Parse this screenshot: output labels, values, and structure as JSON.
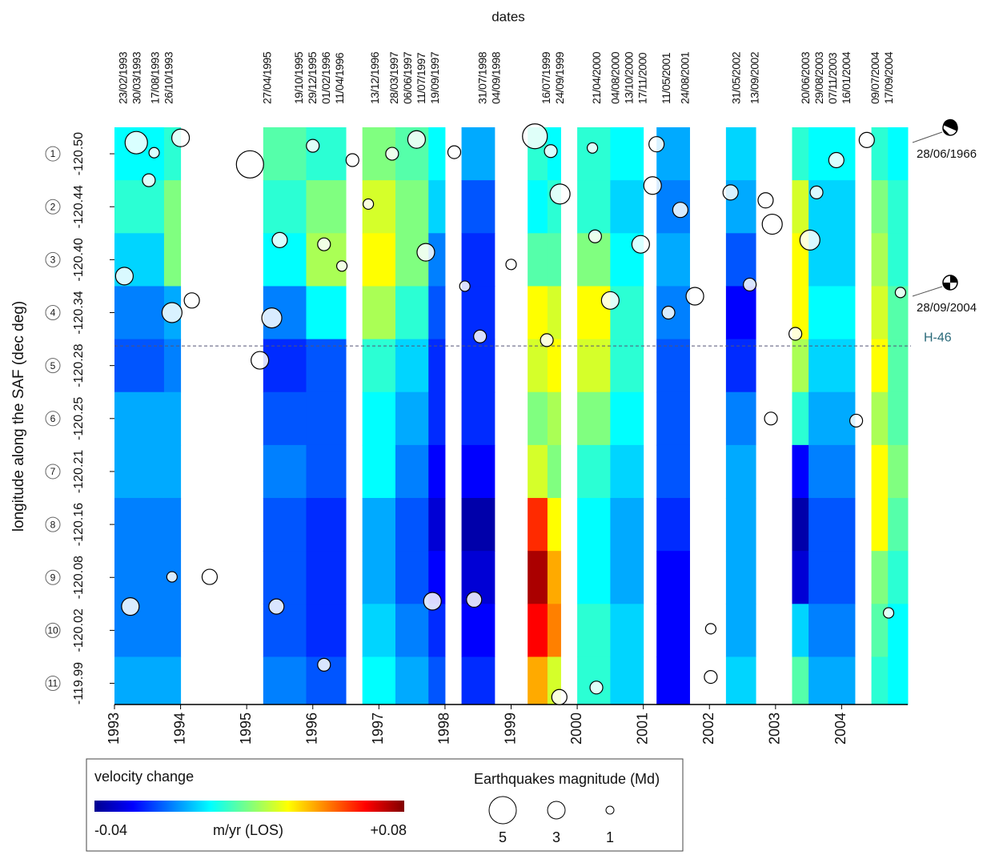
{
  "chart_data": {
    "type": "heatmap-bubble",
    "top_label": "dates",
    "y_label": "longitude along the SAF (dec deg)",
    "dates": [
      "23/02/1993",
      "30/03/1993",
      "17/08/1993",
      "26/10/1993",
      "27/04/1995",
      "19/10/1995",
      "29/12/1995",
      "01/02/1996",
      "11/04/1996",
      "13/12/1996",
      "28/03/1997",
      "06/06/1997",
      "11/07/1997",
      "19/09/1997",
      "31/07/1998",
      "04/09/1998",
      "16/07/1999",
      "24/09/1999",
      "21/04/2000",
      "04/08/2000",
      "13/10/2000",
      "17/11/2000",
      "11/05/2001",
      "24/08/2001",
      "31/05/2002",
      "13/09/2002",
      "20/06/2003",
      "29/08/2003",
      "07/11/2003",
      "16/01/2004",
      "09/07/2004",
      "17/09/2004"
    ],
    "xlim": [
      1993,
      2005
    ],
    "xticks": [
      1993,
      1994,
      1995,
      1996,
      1997,
      1998,
      1999,
      2000,
      2001,
      2002,
      2003,
      2004
    ],
    "ylim": [
      0.5,
      11.4
    ],
    "yticks": [
      {
        "value": 1,
        "label": "-120.50"
      },
      {
        "value": 2,
        "label": "-120.44"
      },
      {
        "value": 3,
        "label": "-120.40"
      },
      {
        "value": 4,
        "label": "-120.34"
      },
      {
        "value": 5,
        "label": "-120.28"
      },
      {
        "value": 6,
        "label": "-120.25"
      },
      {
        "value": 7,
        "label": "-120.21"
      },
      {
        "value": 8,
        "label": "-120.16"
      },
      {
        "value": 9,
        "label": "-120.08"
      },
      {
        "value": 10,
        "label": "-120.02"
      },
      {
        "value": 11,
        "label": "-119.99"
      }
    ],
    "segments": [
      "1",
      "2",
      "3",
      "4",
      "5",
      "6",
      "7",
      "8",
      "9",
      "10",
      "11"
    ],
    "strips": [
      {
        "start": 1993.0,
        "end": 1993.75,
        "values": [
          0.005,
          0.01,
          0.0,
          -0.01,
          -0.015,
          -0.005,
          -0.005,
          -0.01,
          -0.01,
          -0.01,
          -0.005
        ]
      },
      {
        "start": 1993.75,
        "end": 1994.0,
        "values": [
          0.01,
          0.02,
          0.02,
          -0.005,
          -0.01,
          -0.005,
          -0.005,
          -0.01,
          -0.01,
          -0.01,
          -0.005
        ]
      },
      {
        "start": 1995.25,
        "end": 1995.9,
        "values": [
          0.015,
          0.01,
          0.005,
          -0.01,
          -0.02,
          -0.015,
          -0.01,
          -0.015,
          -0.015,
          -0.015,
          -0.01
        ]
      },
      {
        "start": 1995.9,
        "end": 1996.5,
        "values": [
          0.01,
          0.02,
          0.025,
          0.005,
          -0.015,
          -0.015,
          -0.015,
          -0.02,
          -0.02,
          -0.02,
          -0.015
        ]
      },
      {
        "start": 1996.75,
        "end": 1997.25,
        "values": [
          0.02,
          0.03,
          0.035,
          0.025,
          0.01,
          0.005,
          0.005,
          -0.005,
          -0.005,
          0.0,
          0.005
        ]
      },
      {
        "start": 1997.25,
        "end": 1997.75,
        "values": [
          0.015,
          0.02,
          0.02,
          0.01,
          0.0,
          -0.005,
          -0.01,
          -0.015,
          -0.015,
          -0.01,
          -0.005
        ]
      },
      {
        "start": 1997.75,
        "end": 1998.0,
        "values": [
          0.005,
          0.0,
          -0.01,
          -0.015,
          -0.02,
          -0.02,
          -0.025,
          -0.03,
          -0.025,
          -0.02,
          -0.015
        ]
      },
      {
        "start": 1998.25,
        "end": 1998.75,
        "values": [
          -0.005,
          -0.015,
          -0.02,
          -0.02,
          -0.02,
          -0.02,
          -0.025,
          -0.035,
          -0.03,
          -0.025,
          -0.02
        ]
      },
      {
        "start": 1999.25,
        "end": 1999.55,
        "values": [
          0.01,
          0.005,
          0.015,
          0.035,
          0.03,
          0.02,
          0.03,
          0.06,
          0.075,
          0.065,
          0.045
        ]
      },
      {
        "start": 1999.55,
        "end": 1999.75,
        "values": [
          0.005,
          0.01,
          0.015,
          0.03,
          0.035,
          0.025,
          0.02,
          0.035,
          0.045,
          0.05,
          0.03
        ]
      },
      {
        "start": 2000.0,
        "end": 2000.5,
        "values": [
          0.01,
          0.01,
          0.02,
          0.035,
          0.03,
          0.02,
          0.01,
          0.005,
          0.005,
          0.01,
          0.01
        ]
      },
      {
        "start": 2000.5,
        "end": 2001.0,
        "values": [
          0.005,
          0.0,
          0.005,
          0.01,
          0.01,
          0.005,
          0.0,
          -0.005,
          -0.005,
          0.0,
          0.0
        ]
      },
      {
        "start": 2001.2,
        "end": 2001.7,
        "values": [
          -0.005,
          -0.01,
          -0.005,
          -0.01,
          -0.015,
          -0.015,
          -0.015,
          -0.02,
          -0.025,
          -0.025,
          -0.025
        ]
      },
      {
        "start": 2002.25,
        "end": 2002.7,
        "values": [
          0.0,
          -0.005,
          -0.015,
          -0.025,
          -0.02,
          -0.01,
          -0.005,
          -0.005,
          -0.005,
          -0.005,
          0.0
        ]
      },
      {
        "start": 2003.25,
        "end": 2003.5,
        "values": [
          0.01,
          0.03,
          0.035,
          0.035,
          0.025,
          0.01,
          -0.025,
          -0.035,
          -0.03,
          0.0,
          0.015
        ]
      },
      {
        "start": 2003.5,
        "end": 2004.2,
        "values": [
          0.005,
          0.0,
          0.0,
          0.005,
          0.0,
          -0.005,
          -0.01,
          -0.015,
          -0.015,
          -0.01,
          -0.005
        ]
      },
      {
        "start": 2004.45,
        "end": 2004.7,
        "values": [
          0.01,
          0.02,
          0.025,
          0.03,
          0.035,
          0.025,
          0.035,
          0.035,
          0.02,
          0.015,
          0.01
        ]
      },
      {
        "start": 2004.7,
        "end": 2005.0,
        "values": [
          0.005,
          0.01,
          0.01,
          0.015,
          0.015,
          0.015,
          0.02,
          0.015,
          0.01,
          0.005,
          0.005
        ]
      }
    ],
    "earthquakes": {
      "x": [
        1993.33,
        1993.15,
        1993.24,
        1993.87,
        1994.0,
        1994.44,
        1995.05,
        1995.2,
        1995.38,
        1995.45,
        1996.17,
        1996.6,
        1996.84,
        1997.57,
        1997.71,
        1997.81,
        1998.44,
        1998.14,
        1999.36,
        1999.74,
        1999.73,
        1999.54,
        2000.27,
        2000.5,
        2000.29,
        2001.14,
        2000.96,
        2001.38,
        2001.56,
        2001.78,
        2002.32,
        2002.85,
        2002.95,
        2002.93,
        2003.52,
        2003.92,
        2004.22,
        2004.38,
        2004.71,
        2003.62,
        2002.02,
        2002.02,
        1996.17,
        1995.5,
        1994.17,
        1993.52,
        1993.87,
        1996.44,
        2004.89,
        2002.61,
        2001.2,
        2000.23,
        1999.0,
        1998.53,
        1993.6,
        1996.0,
        1999.6,
        2003.3,
        1998.3,
        1997.2
      ],
      "y": [
        0.79,
        3.31,
        9.55,
        4.0,
        0.7,
        8.99,
        1.2,
        4.9,
        4.1,
        9.55,
        10.65,
        1.12,
        1.95,
        0.73,
        2.86,
        9.45,
        9.42,
        0.97,
        0.67,
        1.76,
        11.26,
        4.52,
        2.56,
        3.77,
        11.08,
        1.6,
        2.71,
        4.0,
        2.06,
        3.69,
        1.73,
        1.88,
        2.33,
        6.0,
        2.63,
        1.12,
        6.04,
        0.74,
        9.67,
        1.73,
        10.88,
        9.97,
        2.71,
        2.63,
        3.77,
        1.5,
        8.99,
        3.12,
        3.62,
        3.47,
        0.82,
        0.89,
        3.09,
        4.45,
        0.98,
        0.85,
        0.95,
        4.4,
        3.5,
        1.0
      ],
      "magnitude": [
        4,
        3,
        3,
        3.5,
        3,
        2.5,
        5,
        3,
        3.5,
        2.5,
        2,
        2,
        1.5,
        3,
        3,
        3,
        2.5,
        2,
        4.5,
        3.5,
        2.5,
        2,
        2,
        3,
        2,
        3,
        3,
        2,
        2.5,
        3,
        2.5,
        2.5,
        3.5,
        2,
        3.5,
        2.5,
        2,
        2.5,
        1.5,
        2,
        2,
        1.5,
        2,
        2.5,
        2.5,
        2,
        1.5,
        1.5,
        1.5,
        2,
        2.5,
        1.5,
        1.5,
        2,
        1.5,
        2,
        2,
        2,
        1.5,
        2
      ]
    },
    "reference_line": {
      "label": "H-46",
      "y": 4.63
    },
    "annotations": [
      "28/06/1966",
      "28/09/2004"
    ],
    "colorbar": {
      "title": "velocity change",
      "unit": "m/yr (LOS)",
      "clim": [
        -0.04,
        {
          "value": 0.08,
          "label": "+0.08"
        }
      ]
    },
    "magnitude_legend": {
      "title": "Earthquakes magnitude (Md)",
      "values": [
        5,
        3,
        1
      ]
    }
  }
}
